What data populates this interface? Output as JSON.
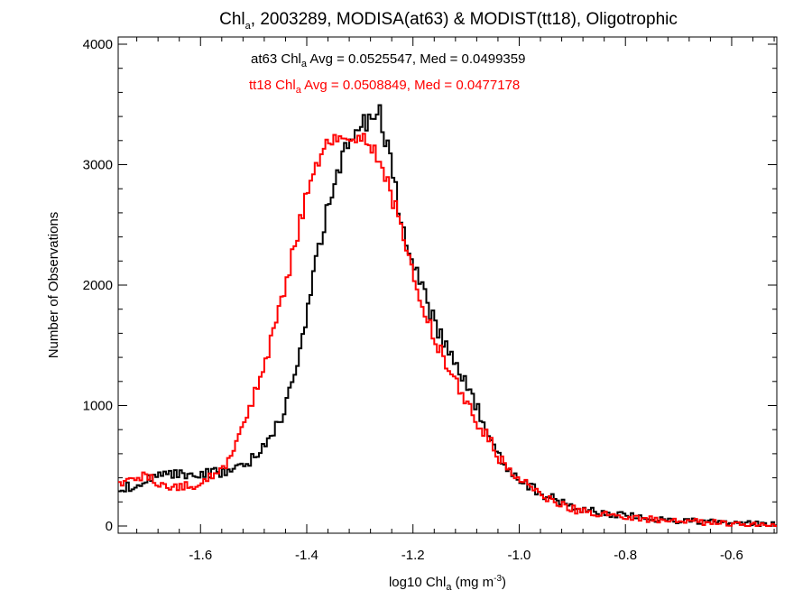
{
  "chart_data": {
    "type": "line",
    "title": {
      "prefix": "Chl",
      "sub": "a",
      "suffix": ", 2003289, MODISA(at63) & MODIST(tt18), Oligotrophic"
    },
    "xlabel": {
      "prefix": "log10 Chl",
      "sub": "a",
      "mid": " (mg m",
      "sup": "-3",
      "suffix": ")"
    },
    "ylabel": "Number of Observations",
    "xlim": [
      -1.755,
      -0.515
    ],
    "ylim": [
      -60,
      4060
    ],
    "xticks": [
      -1.6,
      -1.4,
      -1.2,
      -1.0,
      -0.8,
      -0.6
    ],
    "xtick_labels": [
      "-1.6",
      "-1.4",
      "-1.2",
      "-1.0",
      "-0.8",
      "-0.6"
    ],
    "yticks": [
      0,
      1000,
      2000,
      3000,
      4000
    ],
    "ytick_labels": [
      "0",
      "1000",
      "2000",
      "3000",
      "4000"
    ],
    "grid": false,
    "bin_width": 0.005,
    "annotations": [
      {
        "name": "at63",
        "color": "#000000",
        "prefix": "at63 Chl",
        "sub": "a",
        "suffix": " Avg = 0.0525547, Med = 0.0499359"
      },
      {
        "name": "tt18",
        "color": "#ff0000",
        "prefix": "tt18 Chl",
        "sub": "a",
        "suffix": " Avg = 0.0508849, Med = 0.0477178"
      }
    ],
    "series": [
      {
        "color": "#000000",
        "x": [
          -1.75,
          -1.7,
          -1.65,
          -1.6,
          -1.55,
          -1.52,
          -1.5,
          -1.48,
          -1.46,
          -1.44,
          -1.42,
          -1.4,
          -1.38,
          -1.36,
          -1.34,
          -1.32,
          -1.3,
          -1.28,
          -1.27,
          -1.26,
          -1.25,
          -1.24,
          -1.22,
          -1.2,
          -1.18,
          -1.16,
          -1.14,
          -1.12,
          -1.1,
          -1.08,
          -1.06,
          -1.04,
          -1.02,
          -1.0,
          -0.95,
          -0.9,
          -0.85,
          -0.8,
          -0.75,
          -0.7,
          -0.65,
          -0.6,
          -0.55,
          -0.52
        ],
        "y": [
          300,
          390,
          420,
          440,
          450,
          490,
          570,
          680,
          820,
          980,
          1280,
          1750,
          2250,
          2650,
          2980,
          3180,
          3300,
          3400,
          3480,
          3420,
          3180,
          2950,
          2500,
          2200,
          1920,
          1700,
          1500,
          1310,
          1180,
          980,
          780,
          600,
          480,
          390,
          250,
          160,
          110,
          85,
          60,
          45,
          35,
          25,
          15,
          10
        ]
      },
      {
        "color": "#ff0000",
        "x": [
          -1.75,
          -1.72,
          -1.7,
          -1.68,
          -1.65,
          -1.62,
          -1.6,
          -1.58,
          -1.56,
          -1.54,
          -1.52,
          -1.5,
          -1.48,
          -1.46,
          -1.44,
          -1.42,
          -1.4,
          -1.38,
          -1.36,
          -1.34,
          -1.32,
          -1.3,
          -1.29,
          -1.28,
          -1.27,
          -1.26,
          -1.25,
          -1.24,
          -1.22,
          -1.2,
          -1.18,
          -1.16,
          -1.14,
          -1.12,
          -1.1,
          -1.08,
          -1.06,
          -1.04,
          -1.02,
          -1.0,
          -0.95,
          -0.9,
          -0.85,
          -0.8,
          -0.75,
          -0.7,
          -0.65,
          -0.6,
          -0.55,
          -0.52
        ],
        "y": [
          350,
          420,
          400,
          350,
          330,
          330,
          360,
          400,
          480,
          600,
          800,
          1050,
          1350,
          1650,
          2000,
          2380,
          2750,
          3000,
          3200,
          3250,
          3150,
          3220,
          3250,
          3150,
          3080,
          3000,
          2900,
          2750,
          2400,
          2050,
          1800,
          1600,
          1350,
          1200,
          1050,
          880,
          750,
          580,
          450,
          380,
          240,
          140,
          105,
          80,
          55,
          40,
          30,
          20,
          12,
          10
        ]
      }
    ]
  }
}
